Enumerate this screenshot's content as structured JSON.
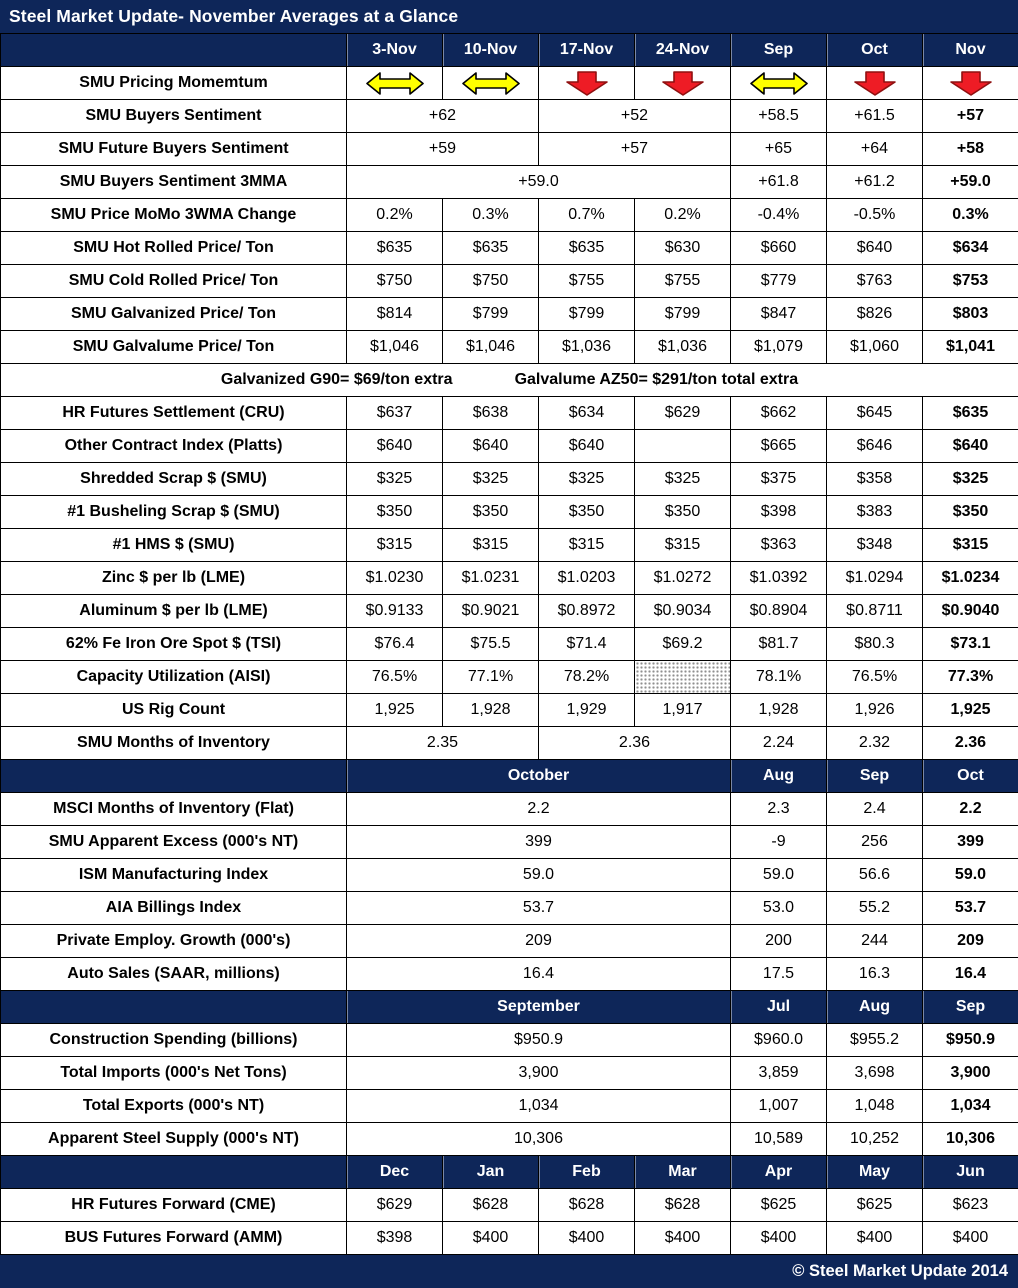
{
  "colors": {
    "navy": "#0e2659",
    "arrow_red": "#ee1c25",
    "arrow_red_outline": "#8f1010",
    "arrow_yellow": "#ffff00",
    "arrow_yellow_outline": "#000000",
    "grid": "#000000",
    "background": "#ffffff"
  },
  "footer": {
    "copyright": "© Steel Market Update 2014"
  },
  "chart_data": {
    "type": "table",
    "title": "Steel Market Update- November Averages at a Glance",
    "columns": [
      "3-Nov",
      "10-Nov",
      "17-Nov",
      "24-Nov",
      "Sep",
      "Oct",
      "Nov"
    ],
    "icon_legend": {
      "sideways-arrow-icon": "yellow double-headed horizontal arrow (momentum flat)",
      "down-arrow-icon": "red block arrow pointing down (momentum falling)"
    },
    "rows": [
      {
        "type": "header",
        "label": "",
        "cells": [
          {
            "t": "3-Nov"
          },
          {
            "t": "10-Nov"
          },
          {
            "t": "17-Nov"
          },
          {
            "t": "24-Nov"
          },
          {
            "t": "Sep"
          },
          {
            "t": "Oct"
          },
          {
            "t": "Nov"
          }
        ]
      },
      {
        "type": "data",
        "label": "SMU Pricing Momemtum",
        "cells": [
          {
            "icon": "sideways-arrow-icon"
          },
          {
            "icon": "sideways-arrow-icon"
          },
          {
            "icon": "down-arrow-icon"
          },
          {
            "icon": "down-arrow-icon"
          },
          {
            "icon": "sideways-arrow-icon"
          },
          {
            "icon": "down-arrow-icon"
          },
          {
            "icon": "down-arrow-icon"
          }
        ]
      },
      {
        "type": "data",
        "label": "SMU Buyers Sentiment",
        "cells": [
          {
            "t": "+62",
            "s": 2
          },
          {
            "t": "+52",
            "s": 2
          },
          {
            "t": "+58.5"
          },
          {
            "t": "+61.5"
          },
          {
            "t": "+57",
            "b": true
          }
        ]
      },
      {
        "type": "data",
        "label": "SMU Future Buyers Sentiment",
        "cells": [
          {
            "t": "+59",
            "s": 2
          },
          {
            "t": "+57",
            "s": 2
          },
          {
            "t": "+65"
          },
          {
            "t": "+64"
          },
          {
            "t": "+58",
            "b": true
          }
        ]
      },
      {
        "type": "data",
        "label": "SMU Buyers Sentiment 3MMA",
        "cells": [
          {
            "t": "+59.0",
            "s": 4
          },
          {
            "t": "+61.8"
          },
          {
            "t": "+61.2"
          },
          {
            "t": "+59.0",
            "b": true
          }
        ]
      },
      {
        "type": "data",
        "label": "SMU Price MoMo 3WMA Change",
        "cells": [
          {
            "t": "0.2%"
          },
          {
            "t": "0.3%"
          },
          {
            "t": "0.7%"
          },
          {
            "t": "0.2%"
          },
          {
            "t": "-0.4%"
          },
          {
            "t": "-0.5%"
          },
          {
            "t": "0.3%",
            "b": true
          }
        ]
      },
      {
        "type": "data",
        "label": "SMU Hot Rolled Price/ Ton",
        "cells": [
          {
            "t": "$635"
          },
          {
            "t": "$635"
          },
          {
            "t": "$635"
          },
          {
            "t": "$630"
          },
          {
            "t": "$660"
          },
          {
            "t": "$640"
          },
          {
            "t": "$634",
            "b": true
          }
        ]
      },
      {
        "type": "data",
        "label": "SMU Cold Rolled Price/ Ton",
        "cells": [
          {
            "t": "$750"
          },
          {
            "t": "$750"
          },
          {
            "t": "$755"
          },
          {
            "t": "$755"
          },
          {
            "t": "$779"
          },
          {
            "t": "$763"
          },
          {
            "t": "$753",
            "b": true
          }
        ]
      },
      {
        "type": "data",
        "label": "SMU Galvanized Price/ Ton",
        "cells": [
          {
            "t": "$814"
          },
          {
            "t": "$799"
          },
          {
            "t": "$799"
          },
          {
            "t": "$799"
          },
          {
            "t": "$847"
          },
          {
            "t": "$826"
          },
          {
            "t": "$803",
            "b": true
          }
        ]
      },
      {
        "type": "data",
        "label": "SMU Galvalume Price/ Ton",
        "cells": [
          {
            "t": "$1,046"
          },
          {
            "t": "$1,046"
          },
          {
            "t": "$1,036"
          },
          {
            "t": "$1,036"
          },
          {
            "t": "$1,079"
          },
          {
            "t": "$1,060"
          },
          {
            "t": "$1,041",
            "b": true
          }
        ]
      },
      {
        "type": "note",
        "texts": [
          "Galvanized G90= $69/ton extra",
          "Galvalume AZ50= $291/ton total extra"
        ]
      },
      {
        "type": "data",
        "label": "HR Futures Settlement (CRU)",
        "cells": [
          {
            "t": "$637"
          },
          {
            "t": "$638"
          },
          {
            "t": "$634"
          },
          {
            "t": "$629"
          },
          {
            "t": "$662"
          },
          {
            "t": "$645"
          },
          {
            "t": "$635",
            "b": true
          }
        ]
      },
      {
        "type": "data",
        "label": "Other Contract Index (Platts)",
        "cells": [
          {
            "t": "$640"
          },
          {
            "t": "$640"
          },
          {
            "t": "$640"
          },
          {
            "t": ""
          },
          {
            "t": "$665"
          },
          {
            "t": "$646"
          },
          {
            "t": "$640",
            "b": true
          }
        ]
      },
      {
        "type": "data",
        "label": "Shredded Scrap $ (SMU)",
        "cells": [
          {
            "t": "$325"
          },
          {
            "t": "$325"
          },
          {
            "t": "$325"
          },
          {
            "t": "$325"
          },
          {
            "t": "$375"
          },
          {
            "t": "$358"
          },
          {
            "t": "$325",
            "b": true
          }
        ]
      },
      {
        "type": "data",
        "label": "#1 Busheling Scrap $ (SMU)",
        "cells": [
          {
            "t": "$350"
          },
          {
            "t": "$350"
          },
          {
            "t": "$350"
          },
          {
            "t": "$350"
          },
          {
            "t": "$398"
          },
          {
            "t": "$383"
          },
          {
            "t": "$350",
            "b": true
          }
        ]
      },
      {
        "type": "data",
        "label": "#1 HMS $ (SMU)",
        "cells": [
          {
            "t": "$315"
          },
          {
            "t": "$315"
          },
          {
            "t": "$315"
          },
          {
            "t": "$315"
          },
          {
            "t": "$363"
          },
          {
            "t": "$348"
          },
          {
            "t": "$315",
            "b": true
          }
        ]
      },
      {
        "type": "data",
        "label": "Zinc $ per lb (LME)",
        "cells": [
          {
            "t": "$1.0230"
          },
          {
            "t": "$1.0231"
          },
          {
            "t": "$1.0203"
          },
          {
            "t": "$1.0272"
          },
          {
            "t": "$1.0392"
          },
          {
            "t": "$1.0294"
          },
          {
            "t": "$1.0234",
            "b": true
          }
        ]
      },
      {
        "type": "data",
        "label": "Aluminum $ per lb (LME)",
        "cells": [
          {
            "t": "$0.9133"
          },
          {
            "t": "$0.9021"
          },
          {
            "t": "$0.8972"
          },
          {
            "t": "$0.9034"
          },
          {
            "t": "$0.8904"
          },
          {
            "t": "$0.8711"
          },
          {
            "t": "$0.9040",
            "b": true
          }
        ]
      },
      {
        "type": "data",
        "label": "62% Fe Iron Ore Spot $ (TSI)",
        "cells": [
          {
            "t": "$76.4"
          },
          {
            "t": "$75.5"
          },
          {
            "t": "$71.4"
          },
          {
            "t": "$69.2"
          },
          {
            "t": "$81.7"
          },
          {
            "t": "$80.3"
          },
          {
            "t": "$73.1",
            "b": true
          }
        ]
      },
      {
        "type": "data",
        "label": "Capacity Utilization (AISI)",
        "cells": [
          {
            "t": "76.5%"
          },
          {
            "t": "77.1%"
          },
          {
            "t": "78.2%"
          },
          {
            "hatch": true
          },
          {
            "t": "78.1%"
          },
          {
            "t": "76.5%"
          },
          {
            "t": "77.3%",
            "b": true
          }
        ]
      },
      {
        "type": "data",
        "label": "US Rig Count",
        "cells": [
          {
            "t": "1,925"
          },
          {
            "t": "1,928"
          },
          {
            "t": "1,929"
          },
          {
            "t": "1,917"
          },
          {
            "t": "1,928"
          },
          {
            "t": "1,926"
          },
          {
            "t": "1,925",
            "b": true
          }
        ]
      },
      {
        "type": "data",
        "label": "SMU Months of Inventory",
        "cells": [
          {
            "t": "2.35",
            "s": 2
          },
          {
            "t": "2.36",
            "s": 2
          },
          {
            "t": "2.24"
          },
          {
            "t": "2.32"
          },
          {
            "t": "2.36",
            "b": true
          }
        ]
      },
      {
        "type": "header",
        "label": "",
        "cells": [
          {
            "t": "October",
            "s": 4
          },
          {
            "t": "Aug"
          },
          {
            "t": "Sep"
          },
          {
            "t": "Oct"
          }
        ]
      },
      {
        "type": "data",
        "label": "MSCI Months of Inventory (Flat)",
        "cells": [
          {
            "t": "2.2",
            "s": 4
          },
          {
            "t": "2.3"
          },
          {
            "t": "2.4"
          },
          {
            "t": "2.2",
            "b": true
          }
        ]
      },
      {
        "type": "data",
        "label": "SMU Apparent Excess (000's NT)",
        "cells": [
          {
            "t": "399",
            "s": 4
          },
          {
            "t": "-9"
          },
          {
            "t": "256"
          },
          {
            "t": "399",
            "b": true
          }
        ]
      },
      {
        "type": "data",
        "label": "ISM Manufacturing Index",
        "cells": [
          {
            "t": "59.0",
            "s": 4
          },
          {
            "t": "59.0"
          },
          {
            "t": "56.6"
          },
          {
            "t": "59.0",
            "b": true
          }
        ]
      },
      {
        "type": "data",
        "label": "AIA Billings Index",
        "cells": [
          {
            "t": "53.7",
            "s": 4
          },
          {
            "t": "53.0"
          },
          {
            "t": "55.2"
          },
          {
            "t": "53.7",
            "b": true
          }
        ]
      },
      {
        "type": "data",
        "label": "Private Employ. Growth (000's)",
        "cells": [
          {
            "t": "209",
            "s": 4
          },
          {
            "t": "200"
          },
          {
            "t": "244"
          },
          {
            "t": "209",
            "b": true
          }
        ]
      },
      {
        "type": "data",
        "label": "Auto Sales (SAAR, millions)",
        "cells": [
          {
            "t": "16.4",
            "s": 4
          },
          {
            "t": "17.5"
          },
          {
            "t": "16.3"
          },
          {
            "t": "16.4",
            "b": true
          }
        ]
      },
      {
        "type": "header",
        "label": "",
        "cells": [
          {
            "t": "September",
            "s": 4
          },
          {
            "t": "Jul"
          },
          {
            "t": "Aug"
          },
          {
            "t": "Sep"
          }
        ]
      },
      {
        "type": "data",
        "label": "Construction Spending (billions)",
        "cells": [
          {
            "t": "$950.9",
            "s": 4
          },
          {
            "t": "$960.0"
          },
          {
            "t": "$955.2"
          },
          {
            "t": "$950.9",
            "b": true
          }
        ]
      },
      {
        "type": "data",
        "label": "Total Imports (000's Net Tons)",
        "cells": [
          {
            "t": "3,900",
            "s": 4
          },
          {
            "t": "3,859"
          },
          {
            "t": "3,698"
          },
          {
            "t": "3,900",
            "b": true
          }
        ]
      },
      {
        "type": "data",
        "label": "Total Exports (000's NT)",
        "cells": [
          {
            "t": "1,034",
            "s": 4
          },
          {
            "t": "1,007"
          },
          {
            "t": "1,048"
          },
          {
            "t": "1,034",
            "b": true
          }
        ]
      },
      {
        "type": "data",
        "label": "Apparent Steel Supply (000's NT)",
        "cells": [
          {
            "t": "10,306",
            "s": 4
          },
          {
            "t": "10,589"
          },
          {
            "t": "10,252"
          },
          {
            "t": "10,306",
            "b": true
          }
        ]
      },
      {
        "type": "header",
        "label": "",
        "cells": [
          {
            "t": "Dec"
          },
          {
            "t": "Jan"
          },
          {
            "t": "Feb"
          },
          {
            "t": "Mar"
          },
          {
            "t": "Apr"
          },
          {
            "t": "May"
          },
          {
            "t": "Jun"
          }
        ]
      },
      {
        "type": "data",
        "label": "HR Futures Forward (CME)",
        "cells": [
          {
            "t": "$629"
          },
          {
            "t": "$628"
          },
          {
            "t": "$628"
          },
          {
            "t": "$628"
          },
          {
            "t": "$625"
          },
          {
            "t": "$625"
          },
          {
            "t": "$623"
          }
        ]
      },
      {
        "type": "data",
        "label": "BUS Futures Forward (AMM)",
        "cells": [
          {
            "t": "$398"
          },
          {
            "t": "$400"
          },
          {
            "t": "$400"
          },
          {
            "t": "$400"
          },
          {
            "t": "$400"
          },
          {
            "t": "$400"
          },
          {
            "t": "$400"
          }
        ]
      }
    ]
  }
}
